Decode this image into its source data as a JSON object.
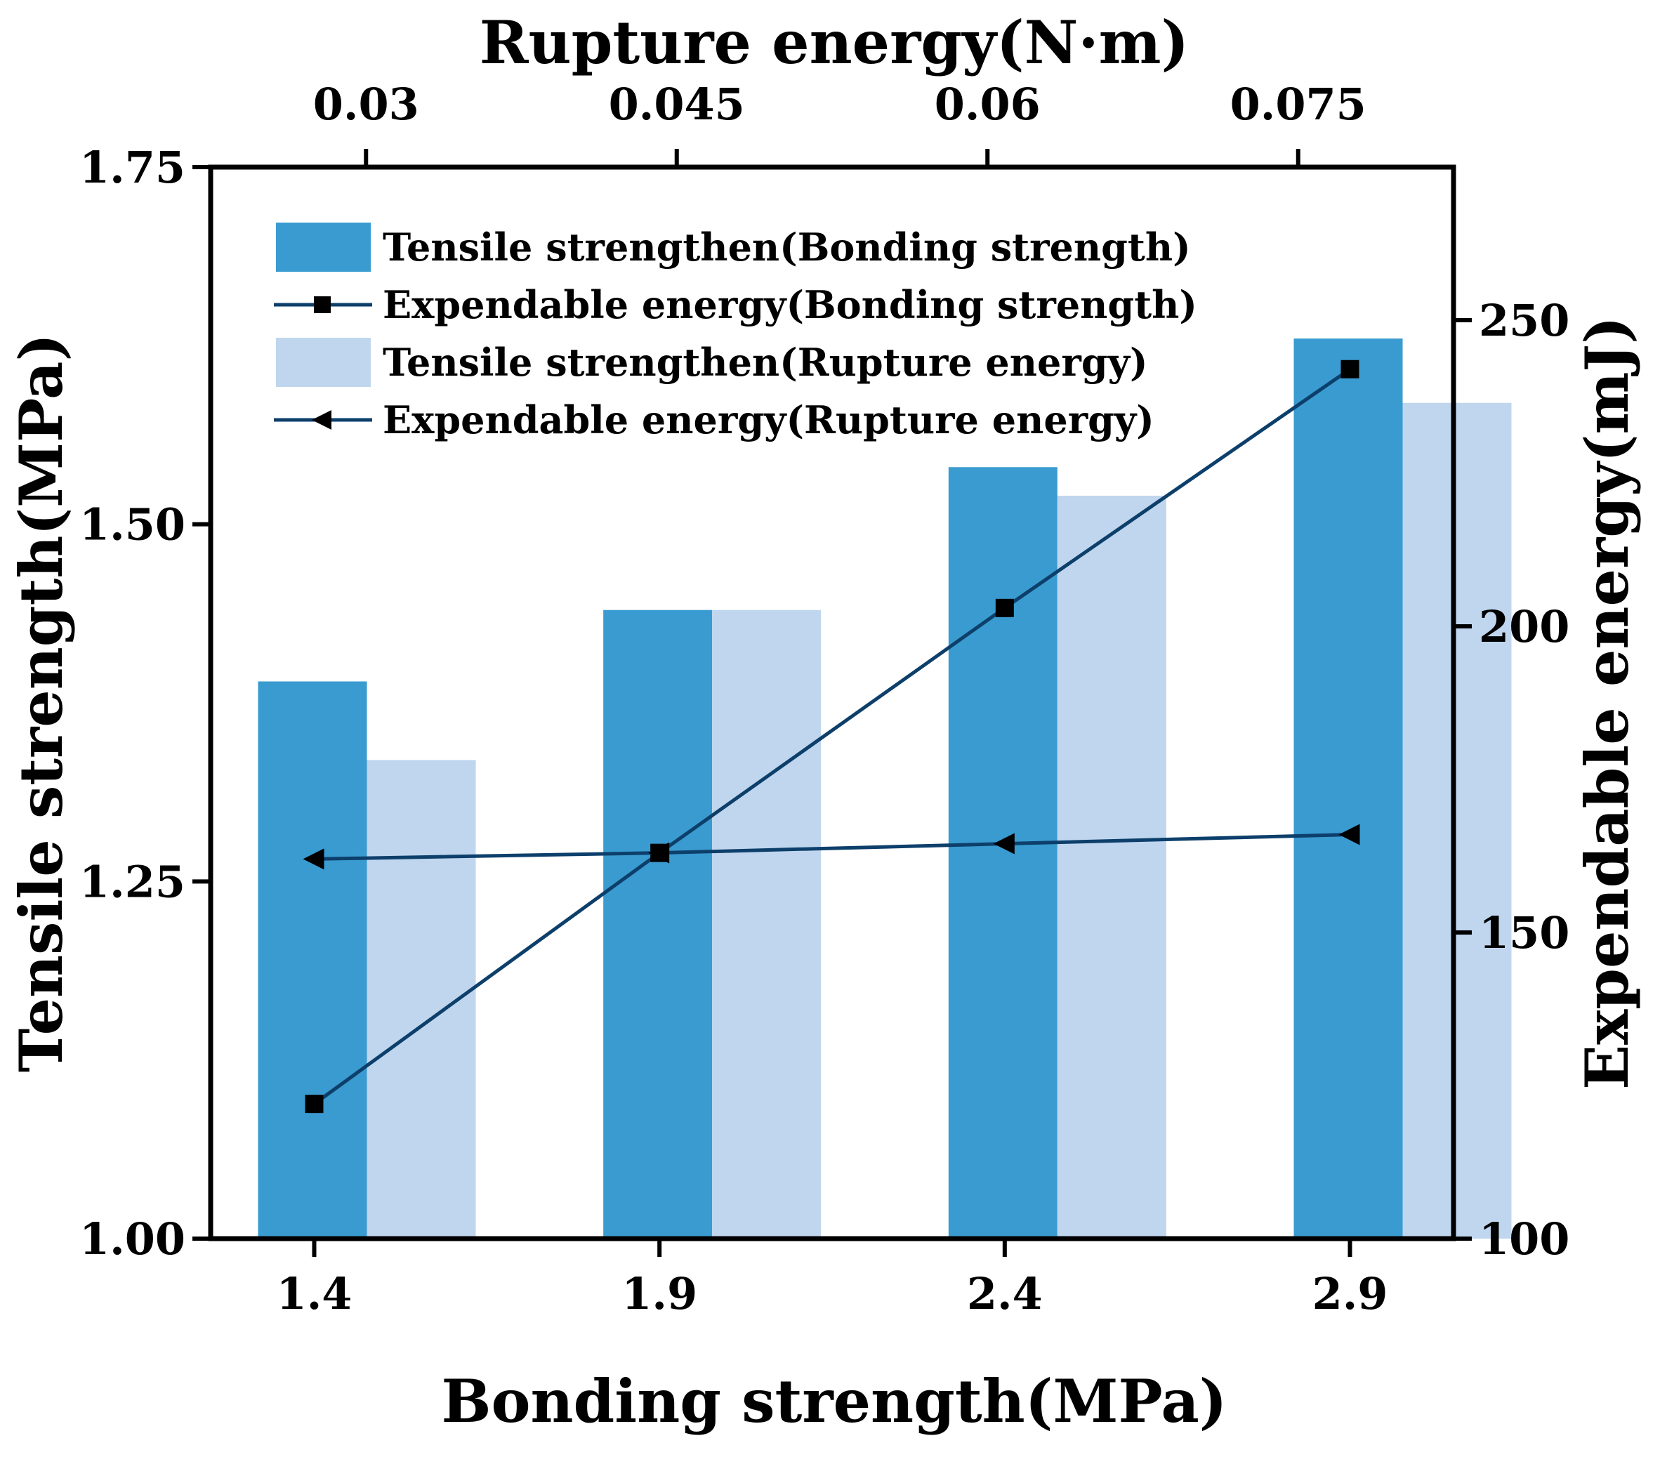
{
  "chart_data": {
    "type": "bar",
    "title": "",
    "top_axis": {
      "label": "Rupture energy(N·m)",
      "ticks": [
        {
          "value": 0.03,
          "label": "0.03"
        },
        {
          "value": 0.045,
          "label": "0.045"
        },
        {
          "value": 0.06,
          "label": "0.06"
        },
        {
          "value": 0.075,
          "label": "0.075"
        }
      ],
      "range": [
        0.0225,
        0.0825
      ]
    },
    "bottom_axis": {
      "label": "Bonding strength(MPa)",
      "categories": [
        "1.4",
        "1.9",
        "2.4",
        "2.9"
      ],
      "range": [
        1.25,
        3.05
      ]
    },
    "left_axis": {
      "label": "Tensile strength(MPa)",
      "ylim": [
        1.0,
        1.75
      ],
      "ticks": [
        {
          "value": 1.0,
          "label": "1.00"
        },
        {
          "value": 1.25,
          "label": "1.25"
        },
        {
          "value": 1.5,
          "label": "1.50"
        },
        {
          "value": 1.75,
          "label": "1.75"
        }
      ]
    },
    "right_axis": {
      "label": "Expendable energy(mJ)",
      "ylim": [
        100,
        275
      ],
      "ticks": [
        {
          "value": 100,
          "label": "100"
        },
        {
          "value": 150,
          "label": "150"
        },
        {
          "value": 200,
          "label": "200"
        },
        {
          "value": 250,
          "label": "250"
        }
      ]
    },
    "series": [
      {
        "name": "Tensile strengthen(Bonding strength)",
        "kind": "bar",
        "axis": "left",
        "color": "#3a9bd0",
        "values": [
          1.39,
          1.44,
          1.54,
          1.63
        ]
      },
      {
        "name": "Expendable energy(Bonding strength)",
        "kind": "line",
        "marker": "square",
        "axis": "right",
        "color": "#0d3f6b",
        "values": [
          122,
          163,
          203,
          242
        ]
      },
      {
        "name": "Tensile strengthen(Rupture energy)",
        "kind": "bar",
        "axis": "left",
        "color": "#c0d6ee",
        "values": [
          1.335,
          1.44,
          1.52,
          1.585
        ]
      },
      {
        "name": "Expendable energy(Rupture energy)",
        "kind": "line",
        "marker": "left-triangle",
        "axis": "right",
        "color": "#0d3f6b",
        "values": [
          162,
          163,
          164.5,
          166
        ]
      }
    ],
    "legend_position": "top-left"
  }
}
